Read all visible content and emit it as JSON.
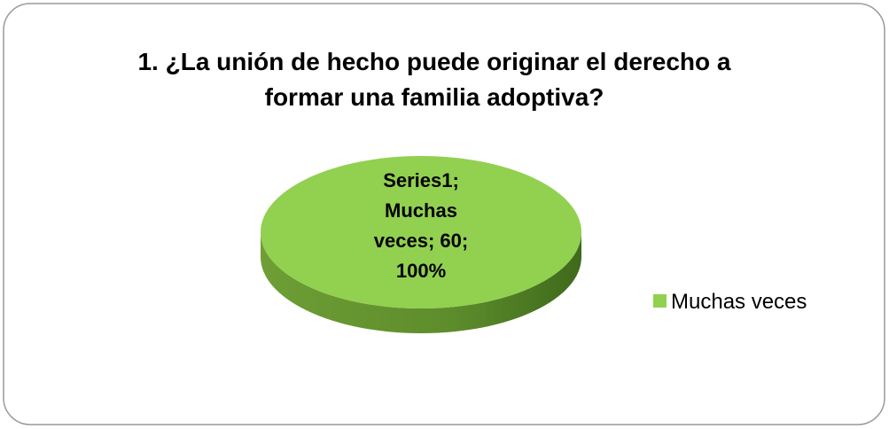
{
  "chart_data": {
    "type": "pie",
    "title": "1. ¿La unión de hecho puede originar el derecho a formar una familia adoptiva?",
    "series_name": "Series1",
    "categories": [
      "Muchas veces"
    ],
    "values": [
      60
    ],
    "value_labels": [
      "Series1; Muchas veces; 60; 100%"
    ],
    "colors": [
      "#92d050"
    ],
    "legend": "right"
  }
}
